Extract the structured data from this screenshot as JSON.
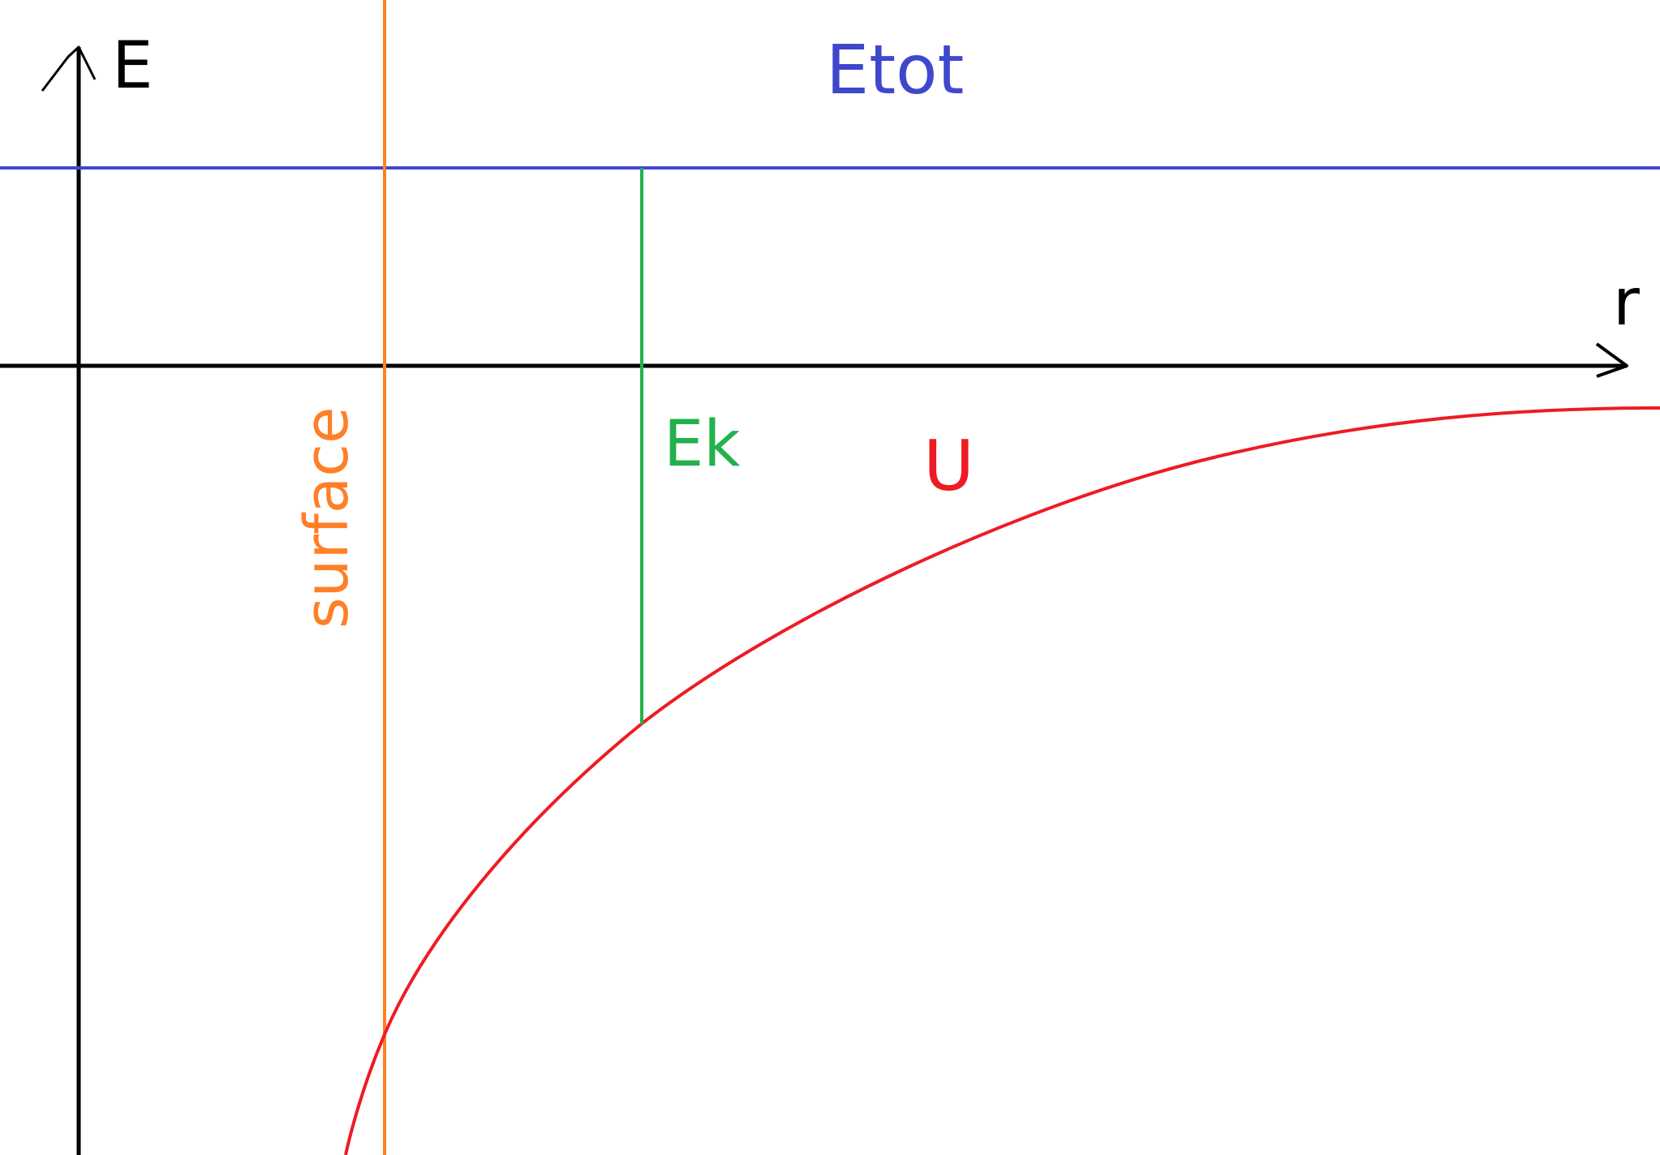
{
  "labels": {
    "y_axis": "E",
    "x_axis": "r",
    "total_energy": "Etot",
    "kinetic_energy": "Ek",
    "potential_energy": "U",
    "surface": "surface"
  },
  "colors": {
    "background": "#ffffff",
    "axes": "#000000",
    "total_energy": "#3f48cc",
    "kinetic_energy": "#22b14c",
    "potential_energy": "#ed1c24",
    "surface": "#ff7f27"
  }
}
